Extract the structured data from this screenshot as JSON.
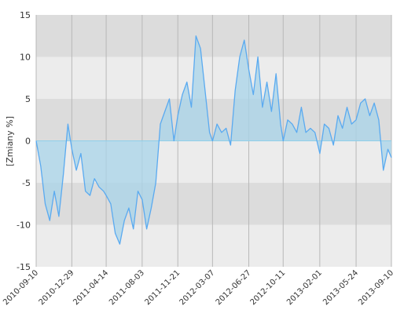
{
  "chart_data": {
    "type": "area",
    "title": "",
    "xlabel": "",
    "ylabel": "[Zmiany %]",
    "ylim": [
      -15,
      15
    ],
    "y_ticks": [
      15,
      10,
      5,
      0,
      -5,
      -10,
      -15
    ],
    "x_range": [
      "2010-09-10",
      "2013-09-10"
    ],
    "x_ticks": [
      "2010-09-10",
      "2010-12-29",
      "2011-04-14",
      "2011-08-03",
      "2011-11-21",
      "2012-03-07",
      "2012-06-27",
      "2012-10-11",
      "2013-02-01",
      "2013-05-24",
      "2013-09-10"
    ],
    "grid": true,
    "legend": "none",
    "colors": {
      "line": "#5aaaf0",
      "fill": "#a8d4ea",
      "band_dark": "#dcdcdc",
      "band_light": "#ececec",
      "gridline": "#b8b8b8",
      "zero_line": "#8ecfea"
    },
    "x": [
      "2010-09-10",
      "2010-09-24",
      "2010-10-08",
      "2010-10-22",
      "2010-11-05",
      "2010-11-19",
      "2010-12-03",
      "2010-12-17",
      "2010-12-29",
      "2011-01-12",
      "2011-01-26",
      "2011-02-09",
      "2011-02-23",
      "2011-03-09",
      "2011-03-23",
      "2011-04-06",
      "2011-04-14",
      "2011-04-28",
      "2011-05-12",
      "2011-05-26",
      "2011-06-09",
      "2011-06-23",
      "2011-07-07",
      "2011-07-21",
      "2011-08-03",
      "2011-08-17",
      "2011-08-31",
      "2011-09-14",
      "2011-09-28",
      "2011-10-12",
      "2011-10-26",
      "2011-11-09",
      "2011-11-21",
      "2011-12-05",
      "2011-12-19",
      "2012-01-02",
      "2012-01-16",
      "2012-01-30",
      "2012-02-13",
      "2012-02-27",
      "2012-03-07",
      "2012-03-21",
      "2012-04-04",
      "2012-04-18",
      "2012-05-02",
      "2012-05-16",
      "2012-05-30",
      "2012-06-13",
      "2012-06-27",
      "2012-07-11",
      "2012-07-25",
      "2012-08-08",
      "2012-08-22",
      "2012-09-05",
      "2012-09-19",
      "2012-10-03",
      "2012-10-11",
      "2012-10-25",
      "2012-11-08",
      "2012-11-22",
      "2012-12-06",
      "2012-12-20",
      "2013-01-03",
      "2013-01-17",
      "2013-02-01",
      "2013-02-15",
      "2013-03-01",
      "2013-03-15",
      "2013-03-29",
      "2013-04-12",
      "2013-04-26",
      "2013-05-10",
      "2013-05-24",
      "2013-06-07",
      "2013-06-21",
      "2013-07-05",
      "2013-07-19",
      "2013-08-02",
      "2013-08-16",
      "2013-08-30",
      "2013-09-10"
    ],
    "series": [
      {
        "values": [
          0.0,
          -3.0,
          -7.5,
          -9.5,
          -6.0,
          -9.0,
          -4.0,
          2.0,
          -1.0,
          -3.5,
          -1.5,
          -6.0,
          -6.5,
          -4.5,
          -5.5,
          -6.0,
          -6.5,
          -7.5,
          -11.0,
          -12.3,
          -9.5,
          -8.0,
          -10.5,
          -6.0,
          -7.0,
          -10.5,
          -8.0,
          -5.0,
          2.0,
          3.5,
          5.0,
          0.0,
          3.0,
          5.5,
          7.0,
          4.0,
          12.5,
          11.0,
          6.0,
          1.0,
          0.0,
          2.0,
          1.0,
          1.5,
          -0.5,
          6.0,
          10.0,
          12.0,
          8.5,
          5.5,
          10.0,
          4.0,
          7.0,
          3.5,
          8.0,
          2.0,
          0.0,
          2.5,
          2.0,
          1.0,
          4.0,
          1.0,
          1.5,
          1.0,
          -1.5,
          2.0,
          1.5,
          -0.5,
          3.0,
          1.5,
          4.0,
          2.0,
          2.5,
          4.5,
          5.0,
          3.0,
          4.5,
          2.5,
          -3.5,
          -1.0,
          -2.0
        ]
      }
    ]
  }
}
